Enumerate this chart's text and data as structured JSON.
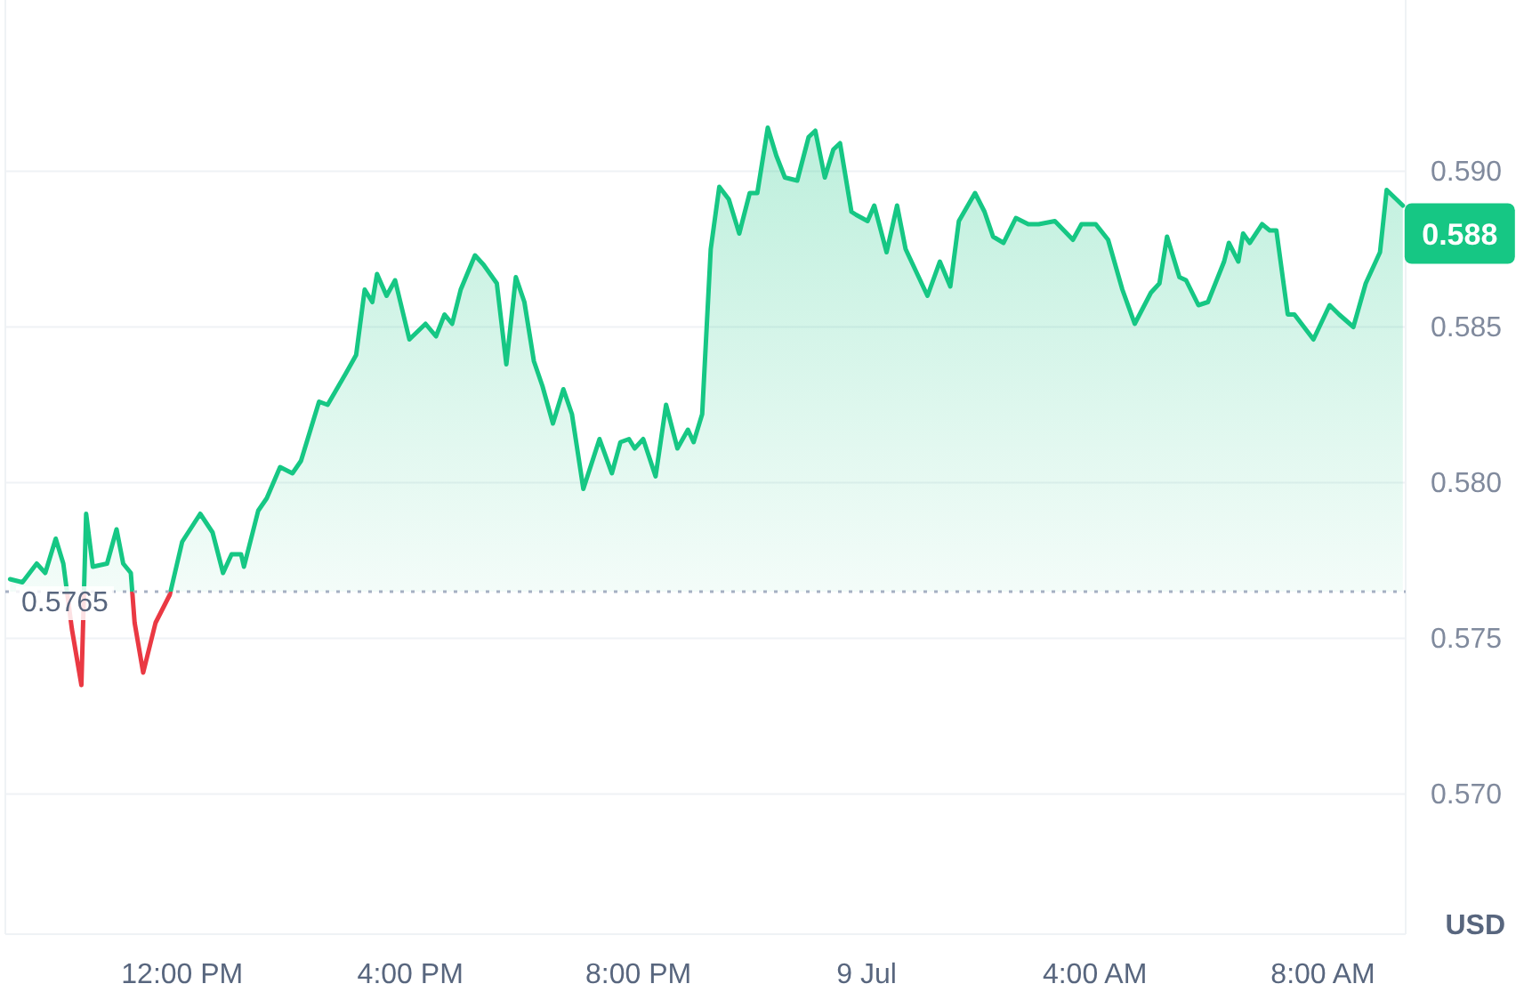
{
  "chart_data": {
    "type": "area",
    "ylabel": "USD",
    "x": [
      "--07-08T08:59",
      "--07-08T09:12",
      "--07-08T09:27",
      "--07-08T09:36",
      "--07-08T09:47",
      "--07-08T09:55",
      "--07-08T10:04",
      "--07-08T10:14",
      "--07-08T10:19",
      "--07-08T10:26",
      "--07-08T10:41",
      "--07-08T10:51",
      "--07-08T10:58",
      "--07-08T11:06",
      "--07-08T11:10",
      "--07-08T11:19",
      "--07-08T11:32",
      "--07-08T11:47",
      "--07-08T12:00",
      "--07-08T12:19",
      "--07-08T12:32",
      "--07-08T12:43",
      "--07-08T12:52",
      "--07-08T13:02",
      "--07-08T13:05",
      "--07-08T13:20",
      "--07-08T13:29",
      "--07-08T13:43",
      "--07-08T13:56",
      "--07-08T14:05",
      "--07-08T14:24",
      "--07-08T14:33",
      "--07-08T14:52",
      "--07-08T15:03",
      "--07-08T15:12",
      "--07-08T15:20",
      "--07-08T15:25",
      "--07-08T15:35",
      "--07-08T15:44",
      "--07-08T15:59",
      "--07-08T16:16",
      "--07-08T16:27",
      "--07-08T16:36",
      "--07-08T16:44",
      "--07-08T16:53",
      "--07-08T17:08",
      "--07-08T17:17",
      "--07-08T17:31",
      "--07-08T17:41",
      "--07-08T17:51",
      "--07-08T18:00",
      "--07-08T18:10",
      "--07-08T18:19",
      "--07-08T18:30",
      "--07-08T18:41",
      "--07-08T18:50",
      "--07-08T19:02",
      "--07-08T19:19",
      "--07-08T19:32",
      "--07-08T19:41",
      "--07-08T19:50",
      "--07-08T19:56",
      "--07-08T20:05",
      "--07-08T20:18",
      "--07-08T20:29",
      "--07-08T20:41",
      "--07-08T20:52",
      "--07-08T20:58",
      "--07-08T21:07",
      "--07-08T21:16",
      "--07-08T21:25",
      "--07-08T21:35",
      "--07-08T21:46",
      "--07-08T21:57",
      "--07-08T22:05",
      "--07-08T22:16",
      "--07-08T22:25",
      "--07-08T22:34",
      "--07-08T22:47",
      "--07-08T22:59",
      "--07-08T23:06",
      "--07-08T23:16",
      "--07-08T23:25",
      "--07-08T23:32",
      "--07-08T23:44",
      "--07-08T23:49",
      "--07-09T00:01",
      "--07-09T00:08",
      "--07-09T00:21",
      "--07-09T00:32",
      "--07-09T00:41",
      "--07-09T01:04",
      "--07-09T01:17",
      "--07-09T01:28",
      "--07-09T01:37",
      "--07-09T01:54",
      "--07-09T02:04",
      "--07-09T02:13",
      "--07-09T02:24",
      "--07-09T02:37",
      "--07-09T02:50",
      "--07-09T03:01",
      "--07-09T03:18",
      "--07-09T03:37",
      "--07-09T03:46",
      "--07-09T04:01",
      "--07-09T04:14",
      "--07-09T04:29",
      "--07-09T04:42",
      "--07-09T04:59",
      "--07-09T05:08",
      "--07-09T05:16",
      "--07-09T05:29",
      "--07-09T05:36",
      "--07-09T05:49",
      "--07-09T05:59",
      "--07-09T06:16",
      "--07-09T06:21",
      "--07-09T06:31",
      "--07-09T06:36",
      "--07-09T06:43",
      "--07-09T06:56",
      "--07-09T07:04",
      "--07-09T07:11",
      "--07-09T07:23",
      "--07-09T07:30",
      "--07-09T07:50",
      "--07-09T08:07",
      "--07-09T08:17",
      "--07-09T08:32",
      "--07-09T08:45",
      "--07-09T09:00",
      "--07-09T09:07",
      "--07-09T09:24"
    ],
    "series": [
      {
        "color": "#16c784",
        "values": [
          0.5769,
          0.5768,
          0.5774,
          0.5771,
          0.5782,
          0.5774,
          0.5753,
          0.5735,
          0.579,
          0.5773,
          0.5774,
          0.5785,
          0.5774,
          0.5771,
          0.5755,
          0.5739,
          0.5755,
          0.5764,
          0.5781,
          0.579,
          0.5784,
          0.5771,
          0.5777,
          0.5777,
          0.5773,
          0.5791,
          0.5795,
          0.5805,
          0.5803,
          0.5807,
          0.5826,
          0.5825,
          0.5835,
          0.5841,
          0.5862,
          0.5858,
          0.5867,
          0.586,
          0.5865,
          0.5846,
          0.5851,
          0.5847,
          0.5854,
          0.5851,
          0.5862,
          0.5873,
          0.587,
          0.5864,
          0.5838,
          0.5866,
          0.5858,
          0.5839,
          0.5831,
          0.5819,
          0.583,
          0.5822,
          0.5798,
          0.5814,
          0.5803,
          0.5813,
          0.5814,
          0.5811,
          0.5814,
          0.5802,
          0.5825,
          0.5811,
          0.5817,
          0.5813,
          0.5822,
          0.5875,
          0.5895,
          0.5891,
          0.588,
          0.5893,
          0.5893,
          0.5914,
          0.5905,
          0.5898,
          0.5897,
          0.5911,
          0.5913,
          0.5898,
          0.5907,
          0.5909,
          0.5887,
          0.5886,
          0.5884,
          0.5889,
          0.5874,
          0.5889,
          0.5875,
          0.586,
          0.5871,
          0.5863,
          0.5884,
          0.5893,
          0.5887,
          0.5879,
          0.5877,
          0.5885,
          0.5883,
          0.5883,
          0.5884,
          0.5878,
          0.5883,
          0.5883,
          0.5878,
          0.5862,
          0.5851,
          0.5861,
          0.5864,
          0.5879,
          0.5866,
          0.5865,
          0.5857,
          0.5858,
          0.5871,
          0.5877,
          0.5871,
          0.588,
          0.5877,
          0.5883,
          0.5881,
          0.5881,
          0.5854,
          0.5854,
          0.5846,
          0.5857,
          0.5854,
          0.585,
          0.5864,
          0.5874,
          0.5894,
          0.5889
        ]
      }
    ],
    "xlim": [
      "--07-08T08:54",
      "--07-09T09:27"
    ],
    "xticks": [
      {
        "value": "--07-08T12:00",
        "label": "12:00 PM"
      },
      {
        "value": "--07-08T16:00",
        "label": "4:00 PM"
      },
      {
        "value": "--07-08T20:00",
        "label": "8:00 PM"
      },
      {
        "value": "--07-09T00:00",
        "label": "9 Jul"
      },
      {
        "value": "--07-09T04:00",
        "label": "4:00 AM"
      },
      {
        "value": "--07-09T08:00",
        "label": "8:00 AM"
      }
    ],
    "ylim": [
      0.5655,
      0.5955
    ],
    "yticks": [
      {
        "value": 0.57,
        "label": "0.570"
      },
      {
        "value": 0.575,
        "label": "0.575"
      },
      {
        "value": 0.58,
        "label": "0.580"
      },
      {
        "value": 0.585,
        "label": "0.585"
      },
      {
        "value": 0.59,
        "label": "0.590"
      }
    ],
    "grid": "y",
    "ref_lines": [
      {
        "axis": "y",
        "value": 0.5765,
        "label": "0.5765",
        "color": "#a6b0c3",
        "line_style": "dotted"
      }
    ],
    "annotations": [
      {
        "text": "0.588",
        "x": "--07-09T09:24",
        "y": 0.588
      }
    ]
  }
}
